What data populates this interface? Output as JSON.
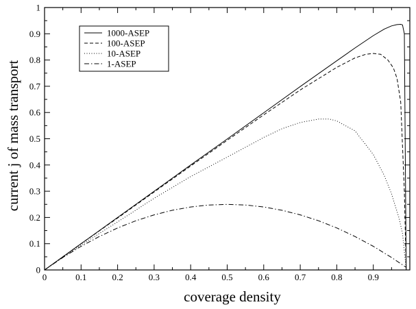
{
  "chart_data": {
    "type": "line",
    "title": "",
    "xlabel": "coverage density",
    "ylabel": "current  j of mass transport",
    "xlim": [
      0,
      1
    ],
    "ylim": [
      0,
      1
    ],
    "grid": false,
    "legend_position": "top-left",
    "x_ticks": [
      "0",
      "0.1",
      "0.2",
      "0.3",
      "0.4",
      "0.5",
      "0.6",
      "0.7",
      "0.8",
      "0.9"
    ],
    "y_ticks": [
      "0",
      "0.1",
      "0.2",
      "0.3",
      "0.4",
      "0.5",
      "0.6",
      "0.7",
      "0.8",
      "0.9",
      "1"
    ],
    "series": [
      {
        "name": "1000-ASEP",
        "dash": "solid",
        "x": [
          0,
          0.1,
          0.2,
          0.3,
          0.4,
          0.5,
          0.6,
          0.7,
          0.8,
          0.85,
          0.9,
          0.93,
          0.95,
          0.965,
          0.975,
          0.98,
          0.985,
          0.99
        ],
        "y": [
          0,
          0.1,
          0.2,
          0.3,
          0.4,
          0.499,
          0.599,
          0.699,
          0.797,
          0.846,
          0.893,
          0.918,
          0.93,
          0.935,
          0.936,
          0.934,
          0.9,
          0.0
        ]
      },
      {
        "name": "100-ASEP",
        "dash": "dashed",
        "x": [
          0,
          0.1,
          0.2,
          0.3,
          0.4,
          0.5,
          0.6,
          0.7,
          0.8,
          0.85,
          0.88,
          0.9,
          0.92,
          0.94,
          0.955,
          0.965,
          0.975,
          0.985,
          0.99
        ],
        "y": [
          0,
          0.1,
          0.198,
          0.297,
          0.396,
          0.494,
          0.591,
          0.686,
          0.772,
          0.808,
          0.822,
          0.825,
          0.822,
          0.8,
          0.77,
          0.73,
          0.64,
          0.3,
          0.0
        ]
      },
      {
        "name": "10-ASEP",
        "dash": "dotted",
        "x": [
          0,
          0.1,
          0.2,
          0.3,
          0.4,
          0.5,
          0.6,
          0.65,
          0.7,
          0.75,
          0.78,
          0.8,
          0.85,
          0.9,
          0.93,
          0.95,
          0.97,
          0.98,
          0.99
        ],
        "y": [
          0,
          0.095,
          0.183,
          0.273,
          0.356,
          0.43,
          0.505,
          0.538,
          0.562,
          0.575,
          0.575,
          0.568,
          0.53,
          0.44,
          0.36,
          0.29,
          0.2,
          0.14,
          0.0
        ]
      },
      {
        "name": "1-ASEP",
        "dash": "dashdot",
        "x": [
          0,
          0.05,
          0.1,
          0.15,
          0.2,
          0.25,
          0.3,
          0.35,
          0.4,
          0.45,
          0.5,
          0.55,
          0.6,
          0.65,
          0.7,
          0.75,
          0.8,
          0.85,
          0.9,
          0.95,
          0.99
        ],
        "y": [
          0,
          0.0475,
          0.09,
          0.1275,
          0.16,
          0.1875,
          0.21,
          0.2275,
          0.24,
          0.2475,
          0.25,
          0.2475,
          0.24,
          0.2275,
          0.21,
          0.1875,
          0.16,
          0.1275,
          0.09,
          0.0475,
          0.0099
        ]
      }
    ]
  }
}
